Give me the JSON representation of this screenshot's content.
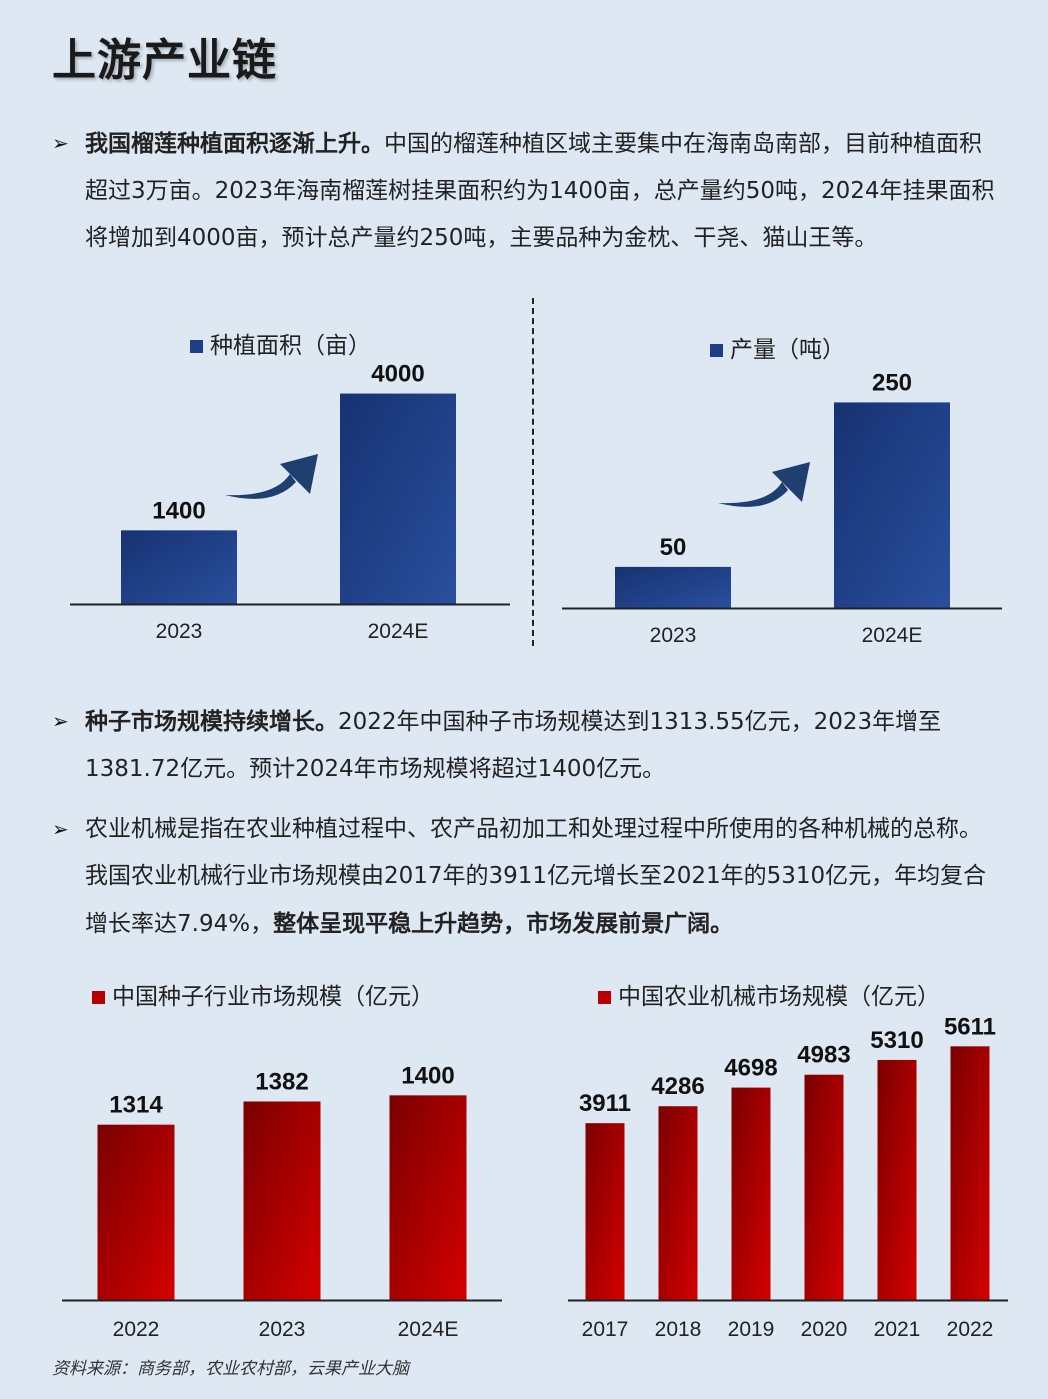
{
  "title": "上游产业链",
  "bullets": [
    {
      "bold": "我国榴莲种植面积逐渐上升。",
      "text": "中国的榴莲种植区域主要集中在海南岛南部，目前种植面积超过3万亩。2023年海南榴莲树挂果面积约为1400亩，总产量约50吨，2024年挂果面积将增加到4000亩，预计总产量约250吨，主要品种为金枕、干尧、猫山王等。"
    },
    {
      "bold": "种子市场规模持续增长。",
      "text": "2022年中国种子市场规模达到1313.55亿元，2023年增至1381.72亿元。预计2024年市场规模将超过1400亿元。"
    },
    {
      "text": "农业机械是指在农业种植过程中、农产品初加工和处理过程中所使用的各种机械的总称。我国农业机械行业市场规模由2017年的3911亿元增长至2021年的5310亿元，年均复合增长率达7.94%，",
      "bold_tail": "整体呈现平稳上升趋势，市场发展前景广阔。"
    }
  ],
  "colors": {
    "blue": "#1e3f86",
    "red": "#b80000",
    "divider": "#222222"
  },
  "chart_data": [
    {
      "type": "bar",
      "legend": "种植面积（亩）",
      "categories": [
        "2023",
        "2024E"
      ],
      "values": [
        1400,
        4000
      ],
      "color": "#1e3f86",
      "ylim": [
        0,
        4600
      ],
      "annotation": "growth-arrow"
    },
    {
      "type": "bar",
      "legend": "产量（吨）",
      "categories": [
        "2023",
        "2024E"
      ],
      "values": [
        50,
        250
      ],
      "color": "#1e3f86",
      "ylim": [
        0,
        287
      ],
      "annotation": "growth-arrow"
    },
    {
      "type": "bar",
      "legend": "中国种子行业市场规模（亿元）",
      "categories": [
        "2022",
        "2023",
        "2024E"
      ],
      "values": [
        1314,
        1382,
        1400
      ],
      "color": "#b80000",
      "ylim": [
        800,
        1530
      ]
    },
    {
      "type": "bar",
      "legend": "中国农业机械市场规模（亿元）",
      "categories": [
        "2017",
        "2018",
        "2019",
        "2020",
        "2021",
        "2022"
      ],
      "values": [
        3911,
        4286,
        4698,
        4983,
        5310,
        5611
      ],
      "color": "#b80000",
      "ylim": [
        0,
        5950
      ]
    }
  ],
  "source": "资料来源：商务部，农业农村部，云果产业大脑"
}
